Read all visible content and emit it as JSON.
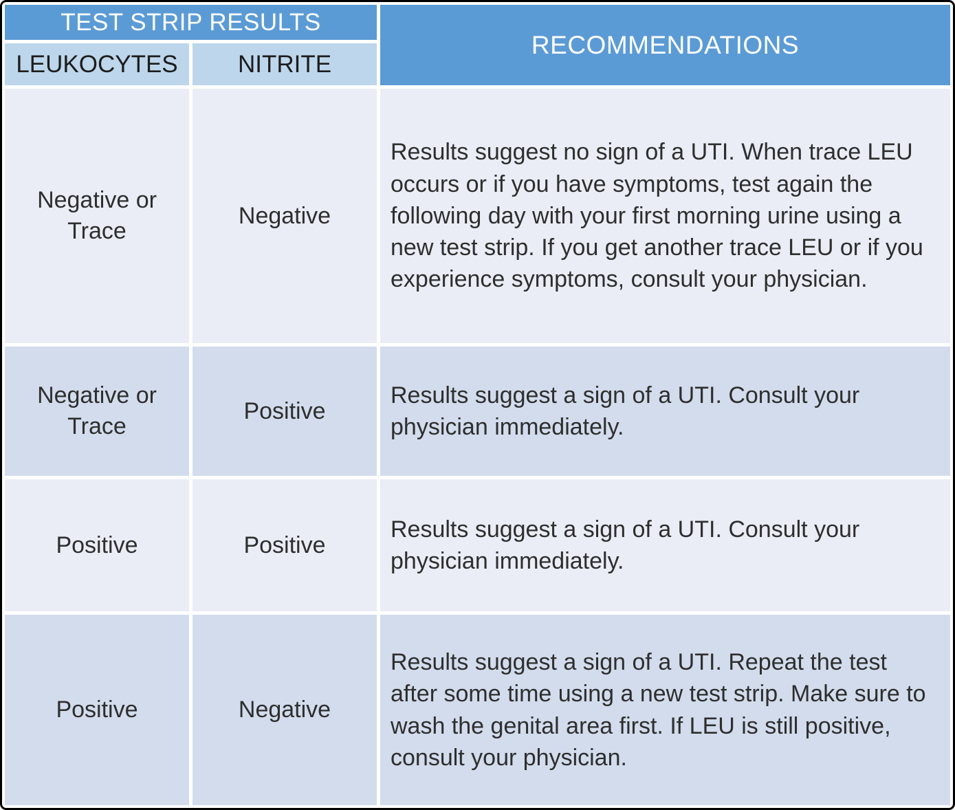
{
  "table": {
    "headers": {
      "test_strip_results": "TEST STRIP RESULTS",
      "recommendations": "RECOMMENDATIONS",
      "leukocytes": "LEUKOCYTES",
      "nitrite": "NITRITE"
    },
    "rows": [
      {
        "leukocytes": "Negative or Trace",
        "nitrite": "Negative",
        "recommendation": "Results suggest no sign of a UTI. When trace LEU occurs or if you have symptoms, test again the following day with your first morning urine using a new test strip. If you get another trace LEU or if you experience symptoms, consult your physician."
      },
      {
        "leukocytes": "Negative or Trace",
        "nitrite": "Positive",
        "recommendation": "Results suggest a sign of a UTI. Consult your physician immediately."
      },
      {
        "leukocytes": "Positive",
        "nitrite": "Positive",
        "recommendation": "Results suggest a sign of a UTI. Consult your physician immediately."
      },
      {
        "leukocytes": "Positive",
        "nitrite": "Negative",
        "recommendation": "Results suggest a sign of a UTI. Repeat the test after some time using a new test strip. Make sure to wash the genital area first. If LEU is still positive, consult your physician."
      }
    ],
    "colors": {
      "header_blue": "#5B9BD5",
      "subheader_blue": "#BDD6EB",
      "row_light": "#EAEDF5",
      "row_dark": "#D2DCEC",
      "header_text": "#FFFFFF",
      "body_text": "#2E2E2E",
      "outer_border": "#000000",
      "gutter": "#FFFFFF"
    }
  }
}
